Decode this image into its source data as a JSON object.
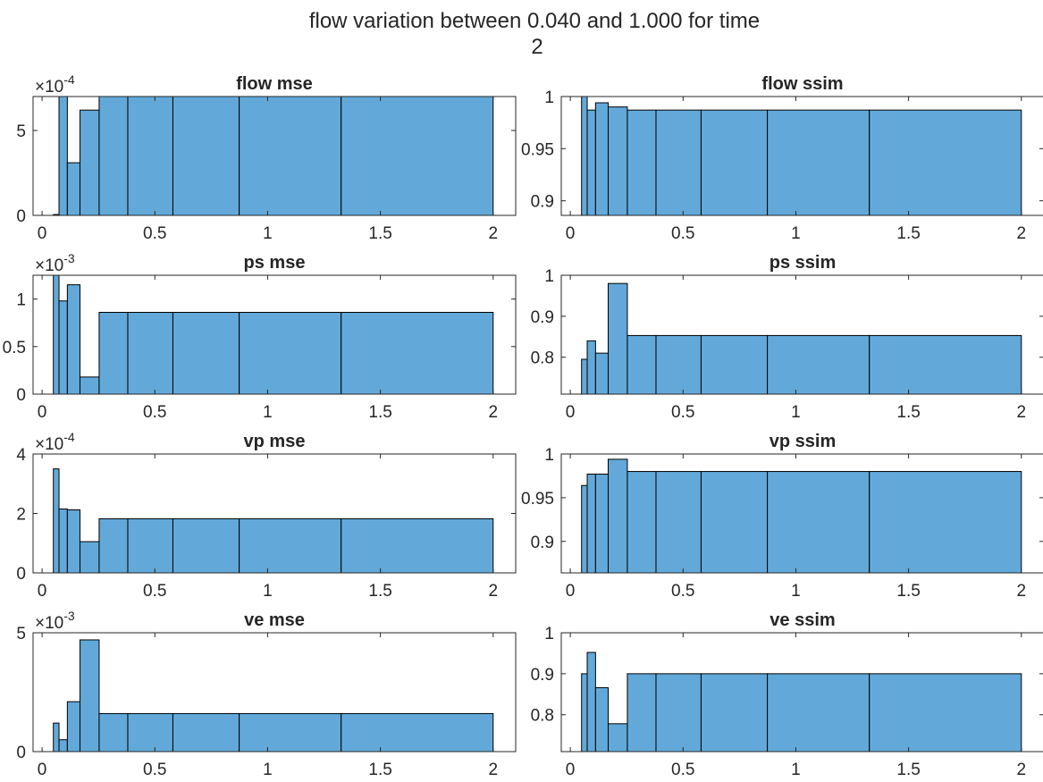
{
  "figure": {
    "title_line1": "flow variation between 0.040 and 1.000 for time",
    "title_line2": "2",
    "bar_color": "#62a9d9",
    "edge_color": "#000000"
  },
  "chart_data": [
    {
      "type": "bar",
      "title": "flow mse",
      "xlim": [
        -0.04,
        2.1
      ],
      "xticks": [
        0,
        0.5,
        1,
        1.5,
        2
      ],
      "xtick_labels": [
        "0",
        "0.5",
        "1",
        "1.5",
        "2"
      ],
      "ylim": [
        0,
        7.0
      ],
      "yticks": [
        0,
        5
      ],
      "ytick_labels": [
        "0",
        "5"
      ],
      "exponent_label": "×10",
      "exponent": "-4",
      "bin_edges": [
        0.05,
        0.075,
        0.112,
        0.168,
        0.253,
        0.38,
        0.58,
        0.874,
        1.326,
        2.0
      ],
      "values": [
        0.05,
        7.3,
        3.1,
        6.2,
        7.0,
        7.0,
        7.0,
        7.0,
        7.0
      ]
    },
    {
      "type": "bar",
      "title": "flow ssim",
      "xlim": [
        -0.04,
        2.1
      ],
      "xticks": [
        0,
        0.5,
        1,
        1.5,
        2
      ],
      "xtick_labels": [
        "0",
        "0.5",
        "1",
        "1.5",
        "2"
      ],
      "ylim": [
        0.886,
        1.0
      ],
      "yticks": [
        0.9,
        0.95,
        1
      ],
      "ytick_labels": [
        "0.9",
        "0.95",
        "1"
      ],
      "bin_edges": [
        0.05,
        0.075,
        0.112,
        0.168,
        0.253,
        0.38,
        0.58,
        0.874,
        1.326,
        2.0
      ],
      "values": [
        1.0,
        0.987,
        0.994,
        0.99,
        0.987,
        0.987,
        0.987,
        0.987,
        0.987
      ]
    },
    {
      "type": "bar",
      "title": "ps mse",
      "xlim": [
        -0.04,
        2.1
      ],
      "xticks": [
        0,
        0.5,
        1,
        1.5,
        2
      ],
      "xtick_labels": [
        "0",
        "0.5",
        "1",
        "1.5",
        "2"
      ],
      "ylim": [
        0,
        1.25
      ],
      "yticks": [
        0,
        0.5,
        1
      ],
      "ytick_labels": [
        "0",
        "0.5",
        "1"
      ],
      "exponent_label": "×10",
      "exponent": "-3",
      "bin_edges": [
        0.05,
        0.075,
        0.112,
        0.168,
        0.253,
        0.38,
        0.58,
        0.874,
        1.326,
        2.0
      ],
      "values": [
        1.3,
        0.98,
        1.15,
        0.18,
        0.86,
        0.86,
        0.86,
        0.86,
        0.86
      ]
    },
    {
      "type": "bar",
      "title": "ps ssim",
      "xlim": [
        -0.04,
        2.1
      ],
      "xticks": [
        0,
        0.5,
        1,
        1.5,
        2
      ],
      "xtick_labels": [
        "0",
        "0.5",
        "1",
        "1.5",
        "2"
      ],
      "ylim": [
        0.71,
        1.0
      ],
      "yticks": [
        0.8,
        0.9,
        1
      ],
      "ytick_labels": [
        "0.8",
        "0.9",
        "1"
      ],
      "bin_edges": [
        0.05,
        0.075,
        0.112,
        0.168,
        0.253,
        0.38,
        0.58,
        0.874,
        1.326,
        2.0
      ],
      "values": [
        0.795,
        0.84,
        0.81,
        0.98,
        0.853,
        0.853,
        0.853,
        0.853,
        0.853
      ]
    },
    {
      "type": "bar",
      "title": "vp mse",
      "xlim": [
        -0.04,
        2.1
      ],
      "xticks": [
        0,
        0.5,
        1,
        1.5,
        2
      ],
      "xtick_labels": [
        "0",
        "0.5",
        "1",
        "1.5",
        "2"
      ],
      "ylim": [
        0,
        4.0
      ],
      "yticks": [
        0,
        2,
        4
      ],
      "ytick_labels": [
        "0",
        "2",
        "4"
      ],
      "exponent_label": "×10",
      "exponent": "-4",
      "bin_edges": [
        0.05,
        0.075,
        0.112,
        0.168,
        0.253,
        0.38,
        0.58,
        0.874,
        1.326,
        2.0
      ],
      "values": [
        3.5,
        2.15,
        2.12,
        1.05,
        1.82,
        1.82,
        1.82,
        1.82,
        1.82
      ]
    },
    {
      "type": "bar",
      "title": "vp ssim",
      "xlim": [
        -0.04,
        2.1
      ],
      "xticks": [
        0,
        0.5,
        1,
        1.5,
        2
      ],
      "xtick_labels": [
        "0",
        "0.5",
        "1",
        "1.5",
        "2"
      ],
      "ylim": [
        0.864,
        1.0
      ],
      "yticks": [
        0.9,
        0.95,
        1
      ],
      "ytick_labels": [
        "0.9",
        "0.95",
        "1"
      ],
      "bin_edges": [
        0.05,
        0.075,
        0.112,
        0.168,
        0.253,
        0.38,
        0.58,
        0.874,
        1.326,
        2.0
      ],
      "values": [
        0.964,
        0.977,
        0.977,
        0.994,
        0.98,
        0.98,
        0.98,
        0.98,
        0.98
      ]
    },
    {
      "type": "bar",
      "title": "ve mse",
      "xlim": [
        -0.04,
        2.1
      ],
      "xticks": [
        0,
        0.5,
        1,
        1.5,
        2
      ],
      "xtick_labels": [
        "0",
        "0.5",
        "1",
        "1.5",
        "2"
      ],
      "ylim": [
        0,
        5.0
      ],
      "yticks": [
        0,
        5
      ],
      "ytick_labels": [
        "0",
        "5"
      ],
      "exponent_label": "×10",
      "exponent": "-3",
      "bin_edges": [
        0.05,
        0.075,
        0.112,
        0.168,
        0.253,
        0.38,
        0.58,
        0.874,
        1.326,
        2.0
      ],
      "values": [
        1.2,
        0.5,
        2.1,
        4.7,
        1.6,
        1.6,
        1.6,
        1.6,
        1.6
      ]
    },
    {
      "type": "bar",
      "title": "ve ssim",
      "xlim": [
        -0.04,
        2.1
      ],
      "xticks": [
        0,
        0.5,
        1,
        1.5,
        2
      ],
      "xtick_labels": [
        "0",
        "0.5",
        "1",
        "1.5",
        "2"
      ],
      "ylim": [
        0.71,
        1.0
      ],
      "yticks": [
        0.8,
        0.9,
        1
      ],
      "ytick_labels": [
        "0.8",
        "0.9",
        "1"
      ],
      "bin_edges": [
        0.05,
        0.075,
        0.112,
        0.168,
        0.253,
        0.38,
        0.58,
        0.874,
        1.326,
        2.0
      ],
      "values": [
        0.9,
        0.952,
        0.866,
        0.778,
        0.9,
        0.9,
        0.9,
        0.9,
        0.9
      ]
    }
  ]
}
